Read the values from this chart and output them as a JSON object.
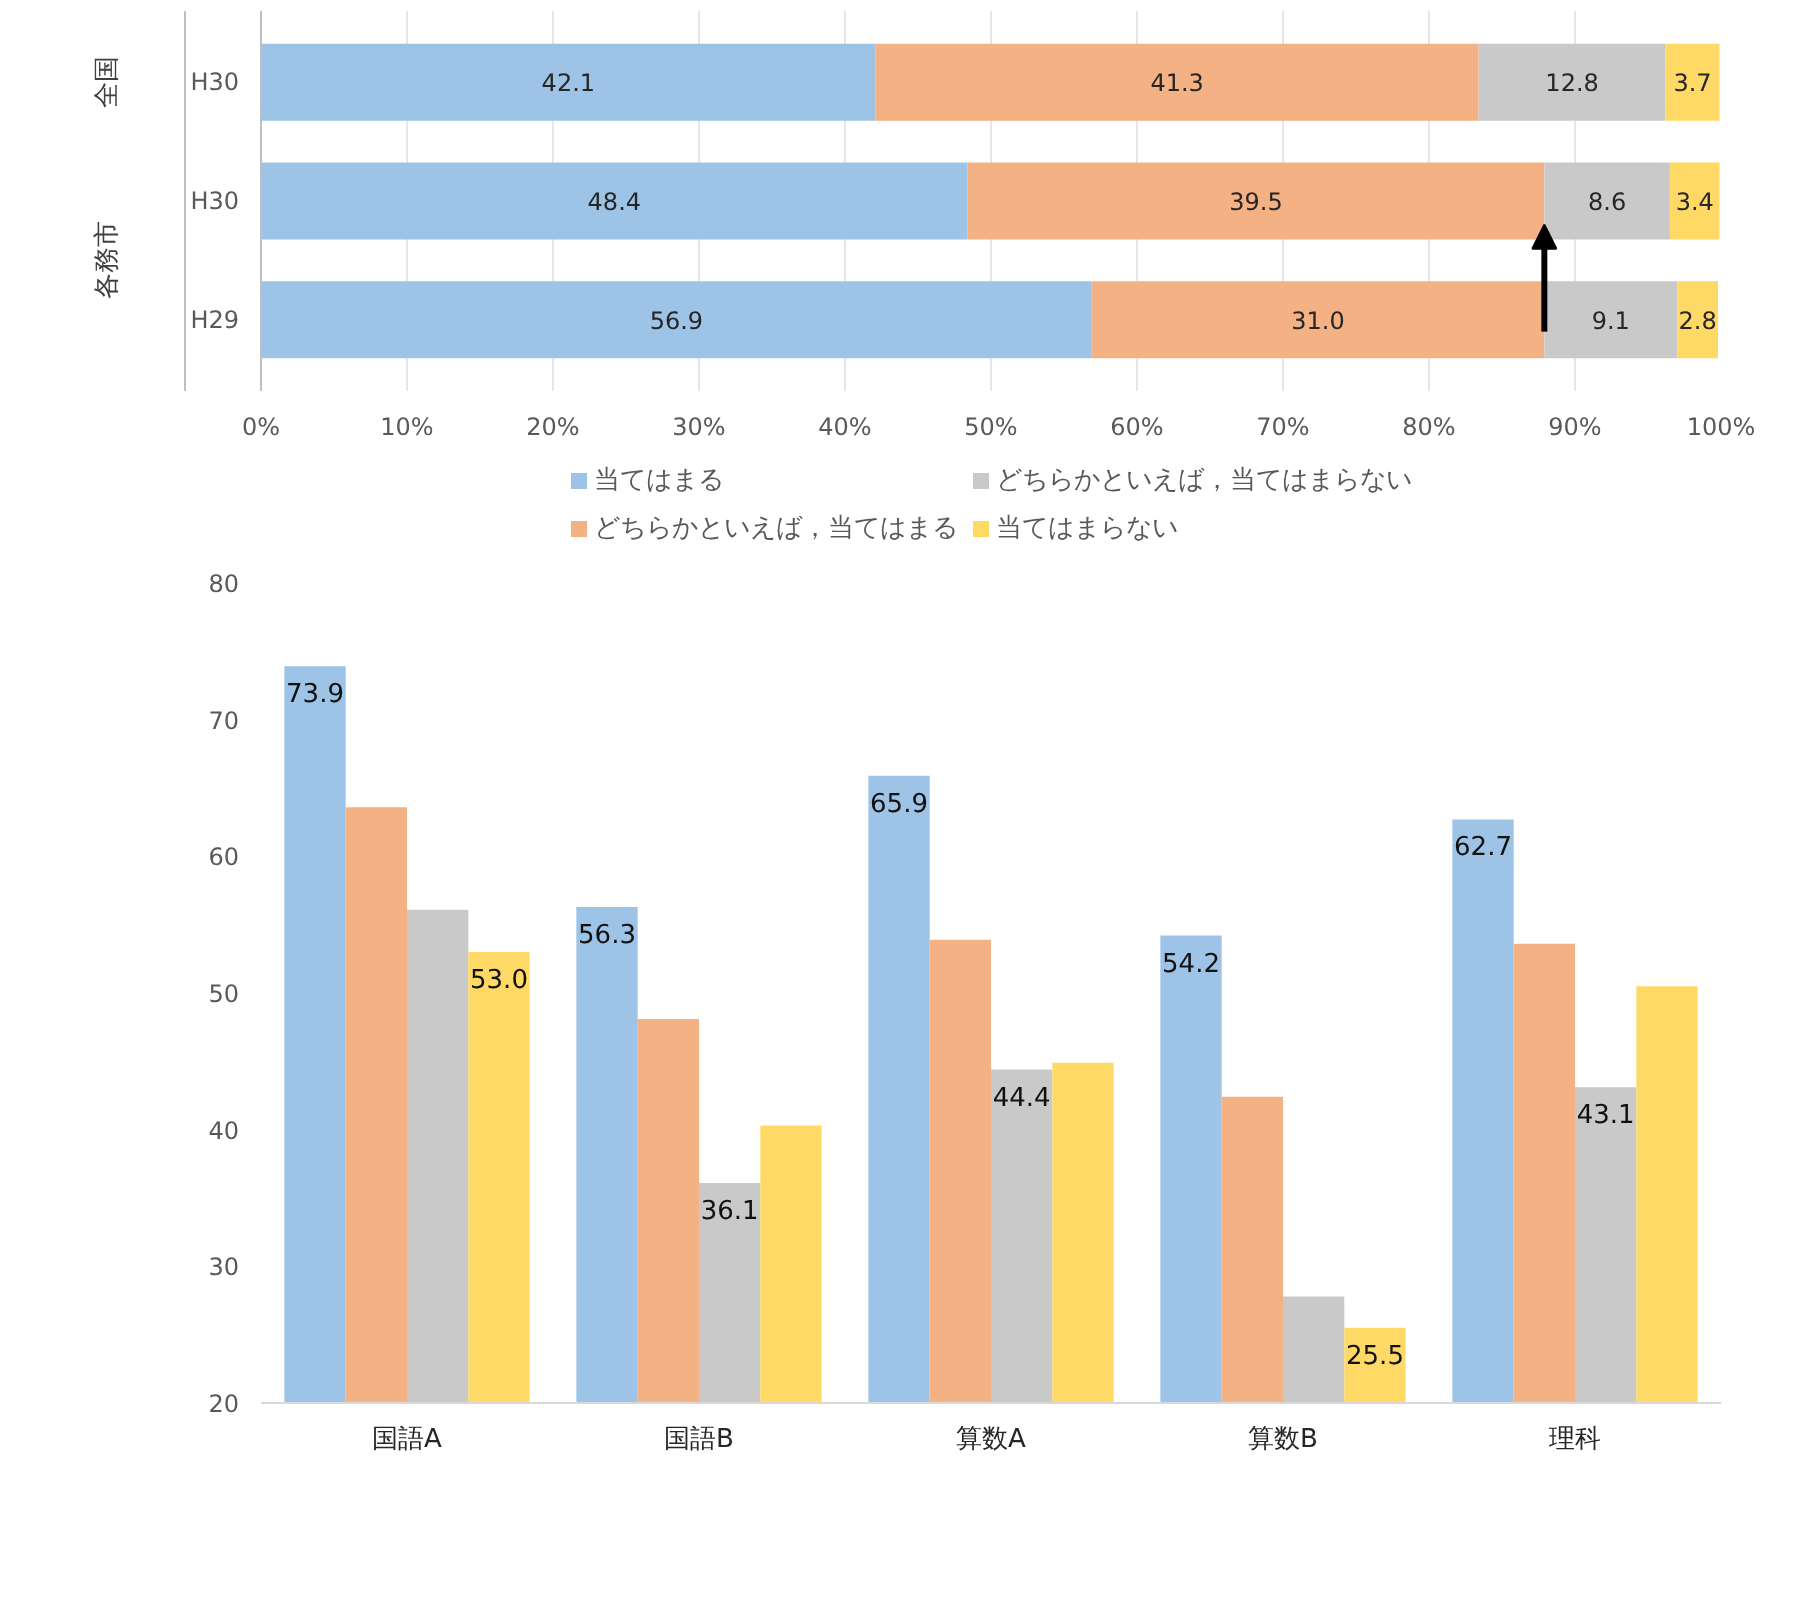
{
  "chart_data": [
    {
      "type": "bar",
      "orientation": "horizontal",
      "stacked": true,
      "categories": [
        "H30",
        "H30",
        "H29"
      ],
      "series": [
        {
          "name": "当てはまる",
          "color": "#9dc3e6",
          "values": [
            42.1,
            48.4,
            56.9
          ],
          "value_labels": [
            "42.1",
            "48.4",
            "56.9"
          ]
        },
        {
          "name": "どちらかといえば，当てはまる",
          "color": "#f4b183",
          "values": [
            41.3,
            39.5,
            31.0
          ],
          "value_labels": [
            "41.3",
            "39.5",
            "31.0"
          ]
        },
        {
          "name": "どちらかといえば，当てはまらない",
          "color": "#c9c9c9",
          "values": [
            12.8,
            8.6,
            9.1
          ],
          "value_labels": [
            "12.8",
            "8.6",
            "9.1"
          ]
        },
        {
          "name": "当てはまらない",
          "color": "#ffd966",
          "values": [
            3.7,
            3.4,
            2.8
          ],
          "value_labels": [
            "3.7",
            "3.4",
            "2.8"
          ]
        }
      ],
      "xlim": [
        0,
        100
      ],
      "xticks": [
        {
          "value": 0,
          "label": "0%"
        },
        {
          "value": 10,
          "label": "10%"
        },
        {
          "value": 20,
          "label": "20%"
        },
        {
          "value": 30,
          "label": "30%"
        },
        {
          "value": 40,
          "label": "40%"
        },
        {
          "value": 50,
          "label": "50%"
        },
        {
          "value": 60,
          "label": "60%"
        },
        {
          "value": 70,
          "label": "70%"
        },
        {
          "value": 80,
          "label": "80%"
        },
        {
          "value": 90,
          "label": "90%"
        },
        {
          "value": 100,
          "label": "100%"
        }
      ],
      "grid": "x",
      "legend": "bottom",
      "annotations": [
        "全国",
        "各務市"
      ]
    },
    {
      "type": "bar",
      "categories": [
        "国語A",
        "国語B",
        "算数A",
        "算数B",
        "理科"
      ],
      "series": [
        {
          "color": "#9dc3e6",
          "values": [
            73.9,
            56.3,
            65.9,
            54.2,
            62.7
          ],
          "value_labels": [
            "73.9",
            "56.3",
            "65.9",
            "54.2",
            "62.7"
          ]
        },
        {
          "color": "#f4b183",
          "values": [
            63.6,
            48.1,
            53.9,
            42.4,
            53.6
          ],
          "value_labels": [
            null,
            null,
            null,
            null,
            null
          ]
        },
        {
          "color": "#c9c9c9",
          "values": [
            56.1,
            36.1,
            44.4,
            27.8,
            43.1
          ],
          "value_labels": [
            null,
            "36.1",
            "44.4",
            null,
            "43.1"
          ]
        },
        {
          "color": "#ffd966",
          "values": [
            53.0,
            40.3,
            44.9,
            25.5,
            50.5
          ],
          "value_labels": [
            "53.0",
            null,
            null,
            "25.5",
            null
          ]
        }
      ],
      "ylim": [
        20,
        80
      ],
      "yticks": [
        20,
        30,
        40,
        50,
        60,
        70,
        80
      ],
      "grid": false,
      "legend": false
    }
  ]
}
